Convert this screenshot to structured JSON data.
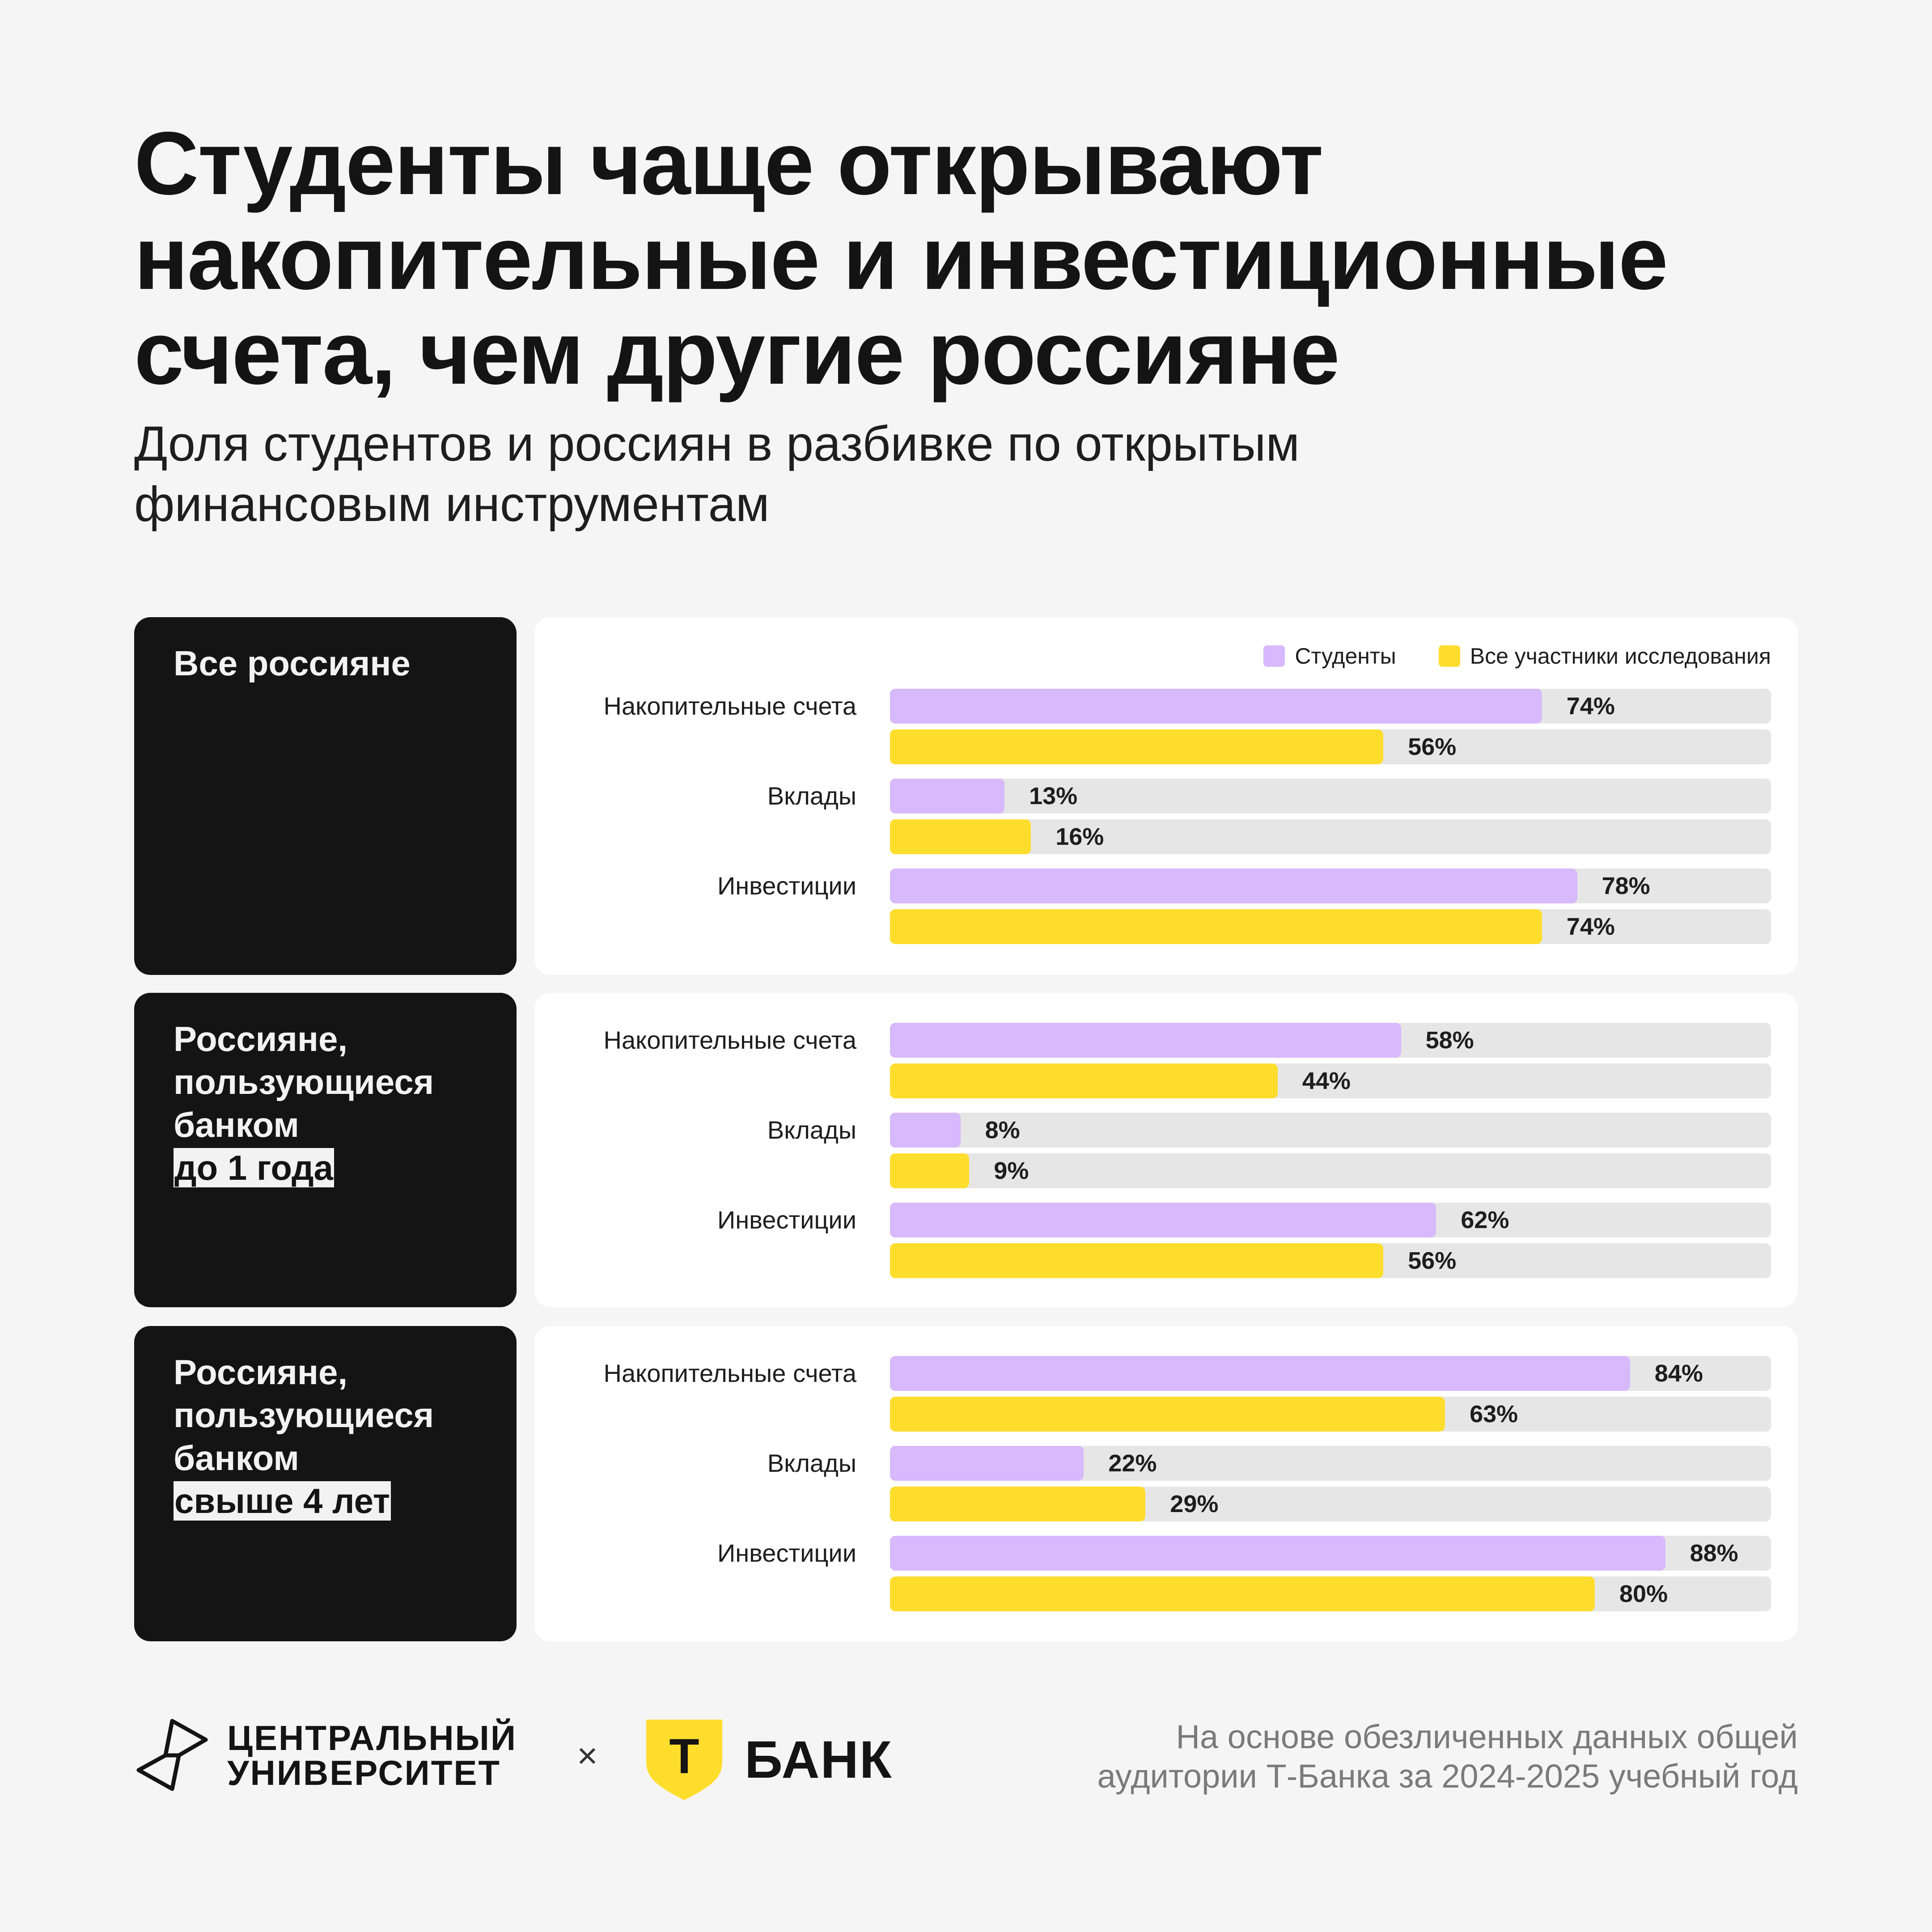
{
  "title": "Студенты чаще открывают накопительные и инвестиционные счета, чем другие россияне",
  "subtitle": "Доля студентов и россиян в разбивке по открытым финансовым инструментам",
  "colors": {
    "students": "#d8b9fb",
    "all": "#ffdd2d",
    "track": "#e6e6e6"
  },
  "legend": {
    "students": "Студенты",
    "all": "Все участники исследования"
  },
  "panels": [
    {
      "label": "Все россияне",
      "highlight": ""
    },
    {
      "label": "Россияне, пользующиеся банком",
      "highlight": "до 1 года"
    },
    {
      "label": "Россияне, пользующиеся банком",
      "highlight": "свыше 4 лет"
    }
  ],
  "chart_data": [
    {
      "type": "bar",
      "orientation": "horizontal",
      "categories": [
        "Накопительные счета",
        "Вклады",
        "Инвестиции"
      ],
      "series": [
        {
          "name": "Студенты",
          "values": [
            74,
            13,
            78
          ],
          "labels": [
            "74%",
            "13%",
            "78%"
          ]
        },
        {
          "name": "Все участники исследования",
          "values": [
            56,
            16,
            74
          ],
          "labels": [
            "56%",
            "16%",
            "74%"
          ]
        }
      ],
      "xlim": [
        0,
        100
      ],
      "legend": "top-right"
    },
    {
      "type": "bar",
      "orientation": "horizontal",
      "categories": [
        "Накопительные счета",
        "Вклады",
        "Инвестиции"
      ],
      "series": [
        {
          "name": "Студенты",
          "values": [
            58,
            8,
            62
          ],
          "labels": [
            "58%",
            "8%",
            "62%"
          ]
        },
        {
          "name": "Все участники исследования",
          "values": [
            44,
            9,
            56
          ],
          "labels": [
            "44%",
            "9%",
            "56%"
          ]
        }
      ],
      "xlim": [
        0,
        100
      ]
    },
    {
      "type": "bar",
      "orientation": "horizontal",
      "categories": [
        "Накопительные счета",
        "Вклады",
        "Инвестиции"
      ],
      "series": [
        {
          "name": "Студенты",
          "values": [
            84,
            22,
            88
          ],
          "labels": [
            "84%",
            "22%",
            "88%"
          ]
        },
        {
          "name": "Все участники исследования",
          "values": [
            63,
            29,
            80
          ],
          "labels": [
            "63%",
            "29%",
            "80%"
          ]
        }
      ],
      "xlim": [
        0,
        100
      ]
    }
  ],
  "footer": {
    "cu_line1": "ЦЕНТРАЛЬНЫЙ",
    "cu_line2": "УНИВЕРСИТЕТ",
    "times": "×",
    "tbank_letter": "Т",
    "tbank_name": "БАНК",
    "source": "На основе обезличенных данных общей аудитории Т-Банка за 2024-2025 учебный год"
  }
}
